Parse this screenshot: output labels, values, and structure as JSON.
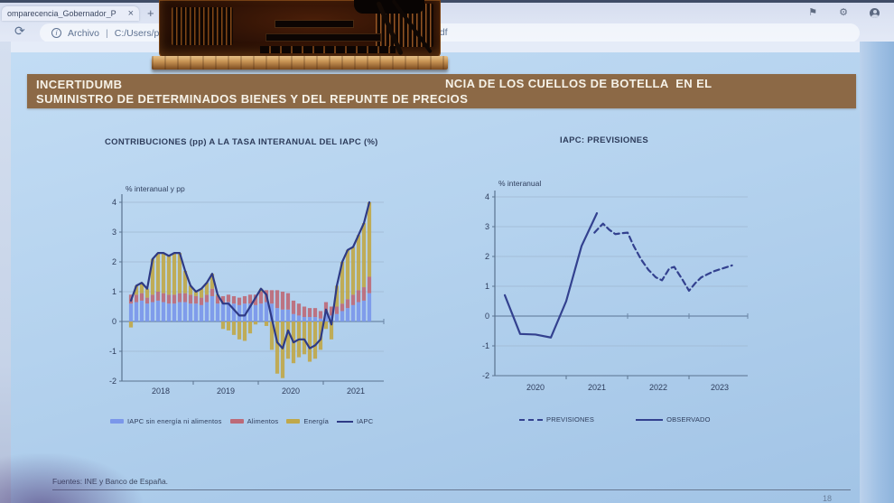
{
  "browser": {
    "tab": {
      "title": "omparecencia_Gobernador_P",
      "close_glyph": "×"
    },
    "new_tab_glyph": "+",
    "toolbar": {
      "refresh_glyph": "⟳",
      "info_glyph": "i",
      "scheme_label": "Archivo",
      "separator": "|",
      "path_visible_start": "C:/Users/portal",
      "path_visible_end": ".pdf"
    },
    "icons": {
      "favorites_flag_glyph": "⚑",
      "settings_gear_glyph": "⚙"
    }
  },
  "slide": {
    "banner": {
      "line1_left": "INCERTIDUMB",
      "line1_right": "NCIA DE LOS CUELLOS DE BOTELLA  EN EL",
      "line2": "SUMINISTRO DE DETERMINADOS BIENES Y DEL REPUNTE DE PRECIOS",
      "bg": "#8c6946",
      "fg": "#f6f2e8"
    },
    "source": "Fuentes: INE y Banco de España.",
    "page_number": "18"
  },
  "colors": {
    "slide_bg": "#b4d2ee",
    "chart_text": "#2e3d5c",
    "grid": "#9fb7d0",
    "axis": "#5a7390",
    "zero_line": "#6b86a6"
  },
  "chart_data": [
    {
      "type": "bar",
      "title": "CONTRIBUCIONES (pp) A LA TASA INTERANUAL DEL IAPC (%)",
      "ylabel": "% interanual y pp",
      "ylim": [
        -2,
        4
      ],
      "yticks": [
        4,
        3,
        2,
        1,
        0,
        -1,
        -2
      ],
      "categories_years": [
        "2018",
        "2019",
        "2020",
        "2021"
      ],
      "x_months": {
        "start": "2018-01",
        "end": "2021-09",
        "count": 45
      },
      "stacked": true,
      "legend_position": "bottom",
      "series": [
        {
          "name": "IAPC sin energía ni alimentos",
          "role": "bar",
          "color": "#7b97ea",
          "values": [
            0.6,
            0.65,
            0.7,
            0.6,
            0.65,
            0.7,
            0.65,
            0.6,
            0.6,
            0.65,
            0.65,
            0.6,
            0.6,
            0.55,
            0.65,
            0.85,
            0.6,
            0.6,
            0.65,
            0.6,
            0.55,
            0.6,
            0.6,
            0.55,
            0.6,
            0.65,
            0.6,
            0.45,
            0.4,
            0.4,
            0.25,
            0.2,
            0.15,
            0.15,
            0.15,
            0.1,
            0.3,
            0.2,
            0.25,
            0.35,
            0.45,
            0.55,
            0.65,
            0.7,
            0.95
          ]
        },
        {
          "name": "Alimentos",
          "role": "bar",
          "color": "#bd6a78",
          "values": [
            0.3,
            0.25,
            0.25,
            0.2,
            0.25,
            0.3,
            0.3,
            0.3,
            0.3,
            0.3,
            0.3,
            0.3,
            0.25,
            0.25,
            0.25,
            0.25,
            0.25,
            0.25,
            0.25,
            0.25,
            0.25,
            0.25,
            0.3,
            0.35,
            0.4,
            0.4,
            0.45,
            0.6,
            0.6,
            0.55,
            0.45,
            0.4,
            0.35,
            0.3,
            0.3,
            0.25,
            0.35,
            0.3,
            0.25,
            0.25,
            0.3,
            0.35,
            0.4,
            0.45,
            0.55
          ]
        },
        {
          "name": "Energía",
          "role": "bar",
          "color": "#c0a84a",
          "values": [
            -0.2,
            0.3,
            0.35,
            0.3,
            1.2,
            1.3,
            1.35,
            1.3,
            1.4,
            1.35,
            0.75,
            0.3,
            0.15,
            0.3,
            0.4,
            0.5,
            0.05,
            -0.25,
            -0.3,
            -0.45,
            -0.6,
            -0.65,
            -0.4,
            -0.1,
            0.1,
            -0.15,
            -0.95,
            -1.75,
            -1.9,
            -1.25,
            -1.4,
            -1.2,
            -1.1,
            -1.35,
            -1.25,
            -0.95,
            -0.25,
            -0.6,
            0.7,
            1.4,
            1.65,
            1.6,
            1.85,
            2.15,
            2.5
          ]
        },
        {
          "name": "IAPC",
          "role": "line",
          "color": "#2e3a85",
          "values": [
            0.7,
            1.2,
            1.3,
            1.1,
            2.1,
            2.3,
            2.3,
            2.2,
            2.3,
            2.3,
            1.7,
            1.2,
            1.0,
            1.1,
            1.3,
            1.6,
            0.9,
            0.6,
            0.6,
            0.4,
            0.2,
            0.2,
            0.5,
            0.8,
            1.1,
            0.9,
            0.1,
            -0.7,
            -0.9,
            -0.3,
            -0.7,
            -0.6,
            -0.6,
            -0.9,
            -0.8,
            -0.6,
            0.4,
            -0.1,
            1.2,
            2.0,
            2.4,
            2.5,
            2.9,
            3.3,
            4.0
          ]
        }
      ]
    },
    {
      "type": "line",
      "title": "IAPC: PREVISIONES",
      "ylabel": "% interanual",
      "ylim": [
        -2,
        4
      ],
      "yticks": [
        4,
        3,
        2,
        1,
        0,
        -1,
        -2
      ],
      "xlim": [
        2019.9,
        2024.0
      ],
      "categories_years": [
        "2020",
        "2021",
        "2022",
        "2023"
      ],
      "legend_position": "bottom",
      "series": [
        {
          "name": "PREVISIONES",
          "style": "dashed",
          "color": "#33418f",
          "x": [
            2021.46,
            2021.55,
            2021.6,
            2021.7,
            2021.8,
            2021.9,
            2022.0,
            2022.1,
            2022.22,
            2022.34,
            2022.46,
            2022.56,
            2022.68,
            2022.76,
            2022.9,
            2023.0,
            2023.1,
            2023.2,
            2023.3,
            2023.4,
            2023.55,
            2023.7
          ],
          "y": [
            2.8,
            3.0,
            3.1,
            2.9,
            2.75,
            2.78,
            2.8,
            2.35,
            1.9,
            1.55,
            1.3,
            1.2,
            1.6,
            1.65,
            1.2,
            0.85,
            1.1,
            1.3,
            1.4,
            1.5,
            1.6,
            1.7
          ]
        },
        {
          "name": "OBSERVADO",
          "style": "solid",
          "color": "#33418f",
          "x": [
            2020.0,
            2020.25,
            2020.5,
            2020.75,
            2021.0,
            2021.25,
            2021.5
          ],
          "y": [
            0.7,
            -0.6,
            -0.62,
            -0.72,
            0.5,
            2.35,
            3.45
          ]
        }
      ]
    }
  ]
}
